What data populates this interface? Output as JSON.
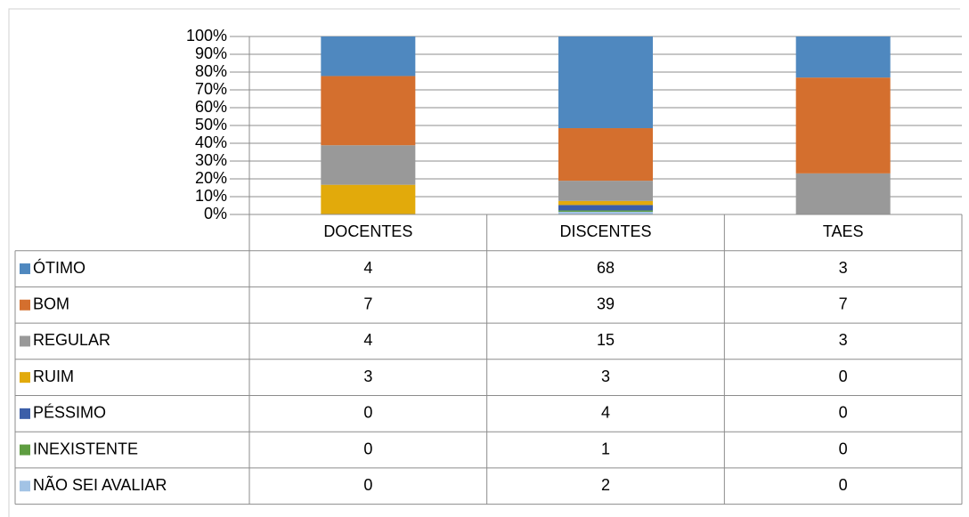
{
  "chart_data": {
    "type": "bar",
    "stacked": "percent",
    "categories": [
      "DOCENTES",
      "DISCENTES",
      "TAES"
    ],
    "series": [
      {
        "name": "ÓTIMO",
        "color": "#4f88bf",
        "values": [
          4,
          68,
          3
        ]
      },
      {
        "name": "BOM",
        "color": "#d46f2e",
        "values": [
          7,
          39,
          7
        ]
      },
      {
        "name": "REGULAR",
        "color": "#999999",
        "values": [
          4,
          15,
          3
        ]
      },
      {
        "name": "RUIM",
        "color": "#e2aa0b",
        "values": [
          3,
          3,
          0
        ]
      },
      {
        "name": "PÉSSIMO",
        "color": "#3b5ea8",
        "values": [
          0,
          4,
          0
        ]
      },
      {
        "name": "INEXISTENTE",
        "color": "#5e9d40",
        "values": [
          0,
          1,
          0
        ]
      },
      {
        "name": "NÃO SEI AVALIAR",
        "color": "#a2c3e5",
        "values": [
          0,
          2,
          0
        ]
      }
    ],
    "ylim": [
      0,
      100
    ],
    "yticks": [
      {
        "value": 0,
        "label": "0%"
      },
      {
        "value": 10,
        "label": "10%"
      },
      {
        "value": 20,
        "label": "20%"
      },
      {
        "value": 30,
        "label": "30%"
      },
      {
        "value": 40,
        "label": "40%"
      },
      {
        "value": 50,
        "label": "50%"
      },
      {
        "value": 60,
        "label": "60%"
      },
      {
        "value": 70,
        "label": "70%"
      },
      {
        "value": 80,
        "label": "80%"
      },
      {
        "value": 90,
        "label": "90%"
      },
      {
        "value": 100,
        "label": "100%"
      }
    ],
    "grid": true
  }
}
